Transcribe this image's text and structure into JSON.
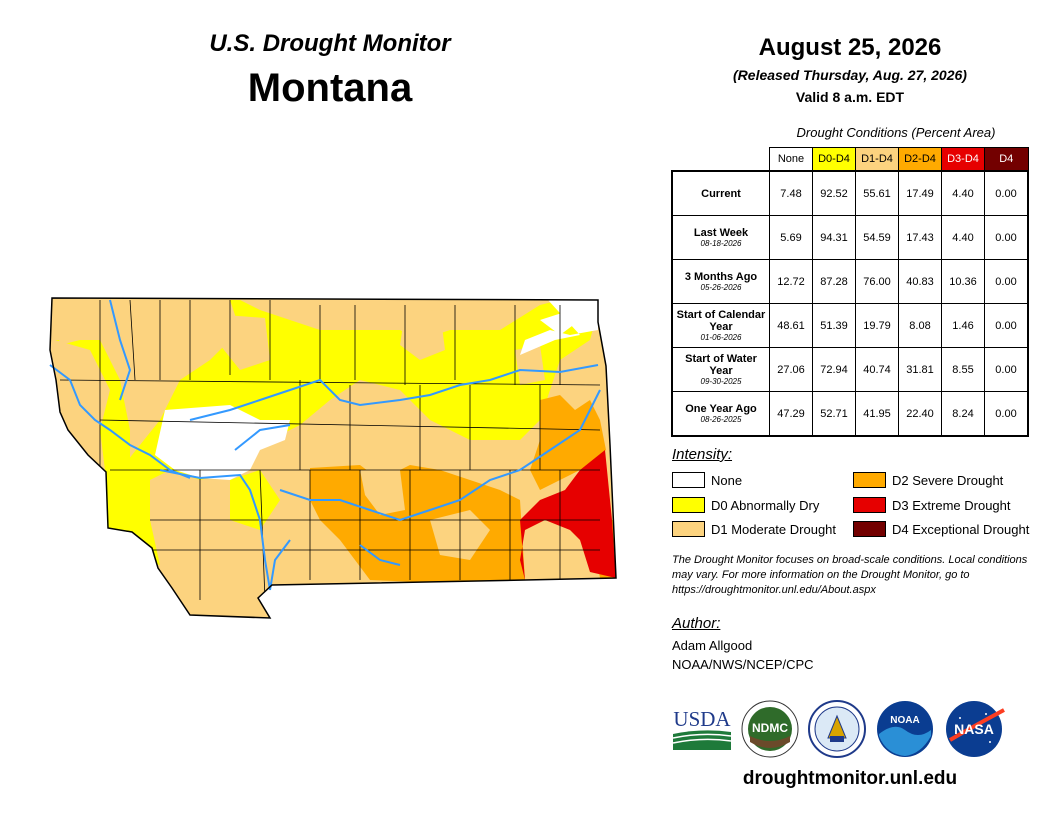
{
  "header": {
    "line1": "U.S. Drought Monitor",
    "line2": "Montana"
  },
  "date": {
    "main": "August 25, 2026",
    "released": "(Released Thursday, Aug. 27, 2026)",
    "valid": "Valid 8 a.m. EDT"
  },
  "table": {
    "caption": "Drought Conditions (Percent Area)",
    "columns": [
      "None",
      "D0-D4",
      "D1-D4",
      "D2-D4",
      "D3-D4",
      "D4"
    ],
    "column_colors": [
      "#ffffff",
      "#ffff00",
      "#fcd37f",
      "#ffaa00",
      "#e60000",
      "#730000"
    ],
    "rows": [
      {
        "label": "Current",
        "date": "",
        "values": [
          "7.48",
          "92.52",
          "55.61",
          "17.49",
          "4.40",
          "0.00"
        ]
      },
      {
        "label": "Last Week",
        "date": "08-18-2026",
        "values": [
          "5.69",
          "94.31",
          "54.59",
          "17.43",
          "4.40",
          "0.00"
        ]
      },
      {
        "label": "3 Months Ago",
        "date": "05-26-2026",
        "values": [
          "12.72",
          "87.28",
          "76.00",
          "40.83",
          "10.36",
          "0.00"
        ]
      },
      {
        "label": "Start of Calendar Year",
        "date": "01-06-2026",
        "values": [
          "48.61",
          "51.39",
          "19.79",
          "8.08",
          "1.46",
          "0.00"
        ]
      },
      {
        "label": "Start of Water Year",
        "date": "09-30-2025",
        "values": [
          "27.06",
          "72.94",
          "40.74",
          "31.81",
          "8.55",
          "0.00"
        ]
      },
      {
        "label": "One Year Ago",
        "date": "08-26-2025",
        "values": [
          "47.29",
          "52.71",
          "41.95",
          "22.40",
          "8.24",
          "0.00"
        ]
      }
    ]
  },
  "legend": {
    "title": "Intensity:",
    "items": [
      {
        "label": "None",
        "color": "#ffffff"
      },
      {
        "label": "D0 Abnormally Dry",
        "color": "#ffff00"
      },
      {
        "label": "D1 Moderate Drought",
        "color": "#fcd37f"
      },
      {
        "label": "D2 Severe Drought",
        "color": "#ffaa00"
      },
      {
        "label": "D3 Extreme Drought",
        "color": "#e60000"
      },
      {
        "label": "D4 Exceptional Drought",
        "color": "#730000"
      }
    ]
  },
  "note": "The Drought Monitor focuses on broad-scale conditions. Local conditions may vary. For more information on the Drought Monitor, go to https://droughtmonitor.unl.edu/About.aspx",
  "author": {
    "title": "Author:",
    "name": "Adam Allgood",
    "org": "NOAA/NWS/NCEP/CPC"
  },
  "logos": {
    "usda": "USDA",
    "ndmc": "NDMC",
    "noaa": "NOAA",
    "nasa": "NASA"
  },
  "site_url": "droughtmonitor.unl.edu",
  "map_colors": {
    "river": "#3399ff",
    "none": "#ffffff",
    "d0": "#ffff00",
    "d1": "#fcd37f",
    "d2": "#ffaa00",
    "d3": "#e60000"
  }
}
